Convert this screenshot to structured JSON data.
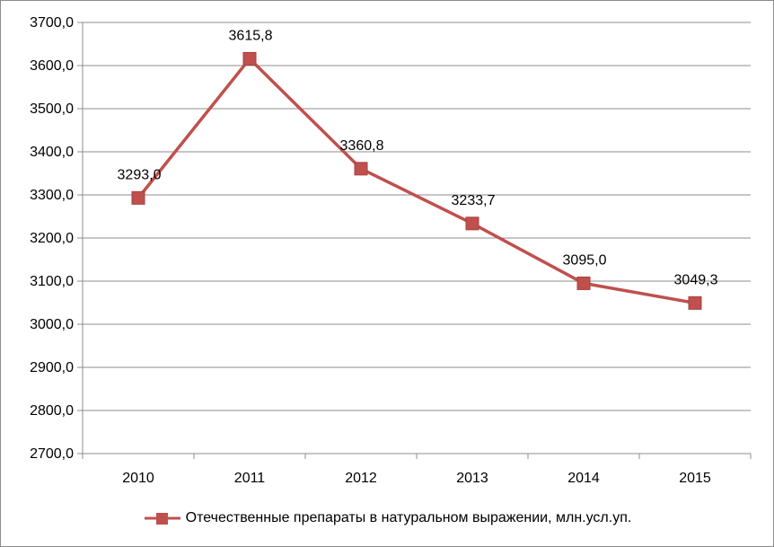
{
  "chart_data": {
    "type": "line",
    "categories": [
      "2010",
      "2011",
      "2012",
      "2013",
      "2014",
      "2015"
    ],
    "series": [
      {
        "name": "Отечественные препараты в натуральном выражении, млн.усл.уп.",
        "values": [
          3293.0,
          3615.8,
          3360.8,
          3233.7,
          3095.0,
          3049.3
        ],
        "labels": [
          "3293,0",
          "3615,8",
          "3360,8",
          "3233,7",
          "3095,0",
          "3049,3"
        ],
        "color": "#c0504d"
      }
    ],
    "title": "",
    "xlabel": "",
    "ylabel": "",
    "ylim": [
      2700,
      3700
    ],
    "yticks": [
      "2700,0",
      "2800,0",
      "2900,0",
      "3000,0",
      "3100,0",
      "3200,0",
      "3300,0",
      "3400,0",
      "3500,0",
      "3600,0",
      "3700,0"
    ],
    "grid": "horizontal",
    "legend": "bottom",
    "marker": "square"
  }
}
